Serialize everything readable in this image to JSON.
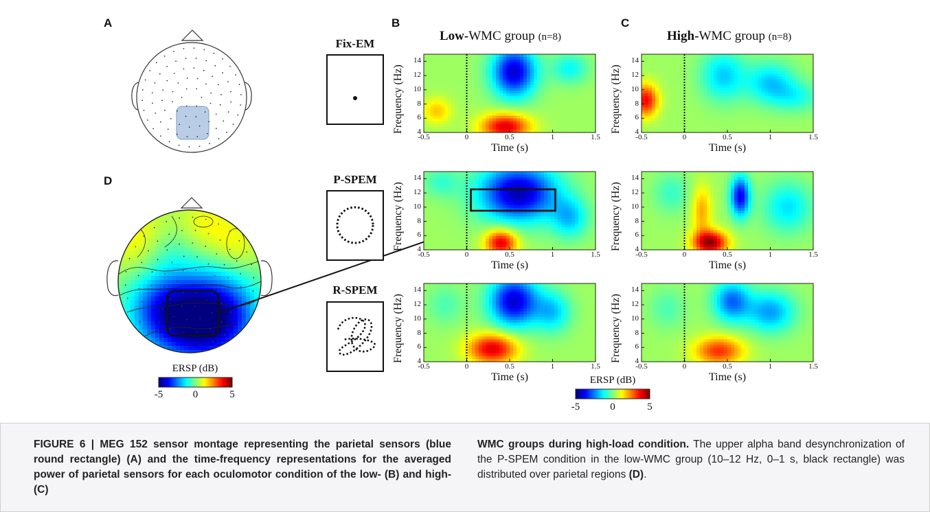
{
  "panel_labels": {
    "a": "A",
    "b": "B",
    "c": "C",
    "d": "D"
  },
  "column_titles": {
    "low": {
      "bold": "Low-",
      "rest": "WMC group",
      "n": "(n=8)"
    },
    "high": {
      "bold": "High-",
      "rest": "WMC group",
      "n": "(n=8)"
    }
  },
  "conditions": [
    "Fix-EM",
    "P-SPEM",
    "R-SPEM"
  ],
  "axes": {
    "ylabel": "Frequency (Hz)",
    "xlabel": "Time (s)",
    "y_ticks": [
      "4",
      "6",
      "8",
      "10",
      "12",
      "14"
    ],
    "x_ticks": [
      "-0.5",
      "0",
      "0.5",
      "1",
      "1.5"
    ]
  },
  "colorbar": {
    "title": "ERSP (dB)",
    "ticks": [
      "-5",
      "0",
      "5"
    ]
  },
  "caption": {
    "left": "FIGURE 6 | MEG 152 sensor montage representing the parietal sensors (blue round rectangle) (A) and the time-frequency representations for the averaged power of parietal sensors for each oculomotor condition of the low- (B) and high- (C)",
    "right_bold": "WMC groups during high-load condition.",
    "right_text": " The upper alpha band desynchronization of the P-SPEM condition in the low-WMC group (10–12 Hz, 0–1 s, black rectangle) was distributed over parietal regions ",
    "right_end_bold": "(D)",
    "right_end": "."
  },
  "chart_data": {
    "type": "heatmap",
    "colormap": "jet",
    "value_unit": "ERSP (dB)",
    "zlim": [
      -5,
      5
    ],
    "xlim": [
      -0.5,
      1.5
    ],
    "ylim": [
      4,
      15
    ],
    "xlabel": "Time (s)",
    "ylabel": "Frequency (Hz)",
    "highlight_box": {
      "condition": "P-SPEM",
      "group": "Low-WMC",
      "freq": [
        10,
        12
      ],
      "time": [
        0,
        1
      ]
    },
    "panels": [
      {
        "group": "Low-WMC",
        "condition": "Fix-EM",
        "blobs": [
          {
            "t": 0.55,
            "f": 12.5,
            "st": 0.18,
            "sf": 2.5,
            "v": -4.5
          },
          {
            "t": 0.45,
            "f": 4.8,
            "st": 0.2,
            "sf": 1.3,
            "v": 3.8
          },
          {
            "t": -0.35,
            "f": 7.0,
            "st": 0.12,
            "sf": 1.3,
            "v": 1.5
          },
          {
            "t": 1.2,
            "f": 13.0,
            "st": 0.15,
            "sf": 1.5,
            "v": -1.5
          }
        ]
      },
      {
        "group": "High-WMC",
        "condition": "Fix-EM",
        "blobs": [
          {
            "t": -0.45,
            "f": 8.5,
            "st": 0.1,
            "sf": 1.6,
            "v": 3.5
          },
          {
            "t": 0.45,
            "f": 12.0,
            "st": 0.18,
            "sf": 2.5,
            "v": -2.0
          },
          {
            "t": 1.0,
            "f": 11.0,
            "st": 0.2,
            "sf": 2.0,
            "v": -2.0
          },
          {
            "t": 1.3,
            "f": 9.0,
            "st": 0.2,
            "sf": 1.5,
            "v": -1.2
          }
        ]
      },
      {
        "group": "Low-WMC",
        "condition": "P-SPEM",
        "blobs": [
          {
            "t": 0.6,
            "f": 12.0,
            "st": 0.32,
            "sf": 2.8,
            "v": -4.8
          },
          {
            "t": 0.4,
            "f": 5.0,
            "st": 0.13,
            "sf": 1.3,
            "v": 3.8
          },
          {
            "t": 1.2,
            "f": 8.5,
            "st": 0.15,
            "sf": 2.0,
            "v": -2.0
          },
          {
            "t": -0.3,
            "f": 13.5,
            "st": 0.15,
            "sf": 1.5,
            "v": -1.0
          }
        ]
      },
      {
        "group": "High-WMC",
        "condition": "P-SPEM",
        "blobs": [
          {
            "t": 0.3,
            "f": 5.0,
            "st": 0.14,
            "sf": 1.2,
            "v": 4.5
          },
          {
            "t": 0.2,
            "f": 9.5,
            "st": 0.08,
            "sf": 2.5,
            "v": 1.8
          },
          {
            "t": 0.65,
            "f": 11.5,
            "st": 0.08,
            "sf": 2.0,
            "v": -4.2
          },
          {
            "t": 1.2,
            "f": 10.0,
            "st": 0.2,
            "sf": 2.5,
            "v": -1.8
          },
          {
            "t": -0.15,
            "f": 12.0,
            "st": 0.15,
            "sf": 2.0,
            "v": -1.0
          }
        ]
      },
      {
        "group": "Low-WMC",
        "condition": "R-SPEM",
        "blobs": [
          {
            "t": 0.55,
            "f": 12.5,
            "st": 0.2,
            "sf": 2.5,
            "v": -4.5
          },
          {
            "t": 0.3,
            "f": 5.8,
            "st": 0.2,
            "sf": 1.5,
            "v": 3.8
          },
          {
            "t": 1.0,
            "f": 11.0,
            "st": 0.15,
            "sf": 2.0,
            "v": -2.0
          },
          {
            "t": -0.25,
            "f": 12.0,
            "st": 0.15,
            "sf": 2.0,
            "v": -0.8
          }
        ]
      },
      {
        "group": "High-WMC",
        "condition": "R-SPEM",
        "blobs": [
          {
            "t": 0.4,
            "f": 5.5,
            "st": 0.2,
            "sf": 1.4,
            "v": 3.0
          },
          {
            "t": 0.55,
            "f": 12.5,
            "st": 0.15,
            "sf": 2.0,
            "v": -3.0
          },
          {
            "t": 1.0,
            "f": 11.0,
            "st": 0.2,
            "sf": 2.0,
            "v": -2.5
          },
          {
            "t": -0.2,
            "f": 11.5,
            "st": 0.15,
            "sf": 2.0,
            "v": -0.8
          }
        ]
      }
    ]
  }
}
